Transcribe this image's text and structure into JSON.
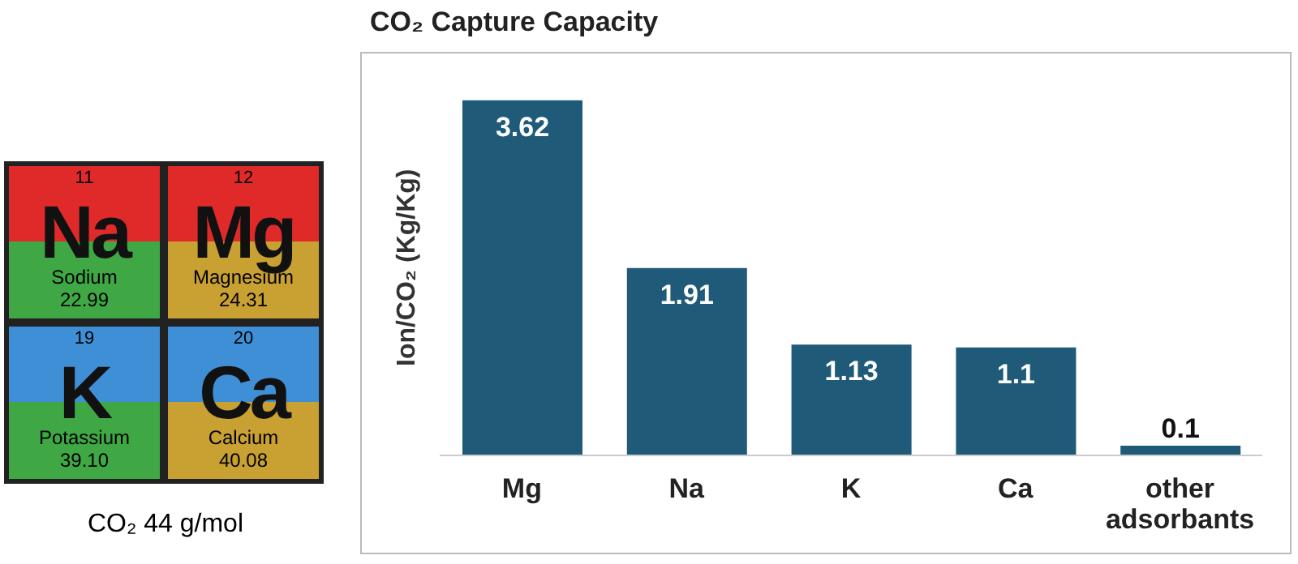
{
  "chart_data": [
    {
      "type": "other",
      "annotations": [
        "11",
        "Na",
        "Sodium",
        "22.99",
        "12",
        "Mg",
        "Magnesium",
        "24.31",
        "19",
        "K",
        "Potassium",
        "39.10",
        "20",
        "Ca",
        "Calcium",
        "40.08",
        "CO₂ 44 g/mol"
      ]
    },
    {
      "type": "bar",
      "title": "CO₂ Capture Capacity",
      "ylabel": "Ion/CO₂ (Kg/Kg)",
      "categories": [
        "Mg",
        "Na",
        "K",
        "Ca",
        "other adsorbants"
      ],
      "values": [
        3.62,
        1.91,
        1.13,
        1.1,
        0.1
      ],
      "color": "#1f5b78",
      "data_labels": true,
      "tick_labels": "x",
      "grid": false
    }
  ]
}
